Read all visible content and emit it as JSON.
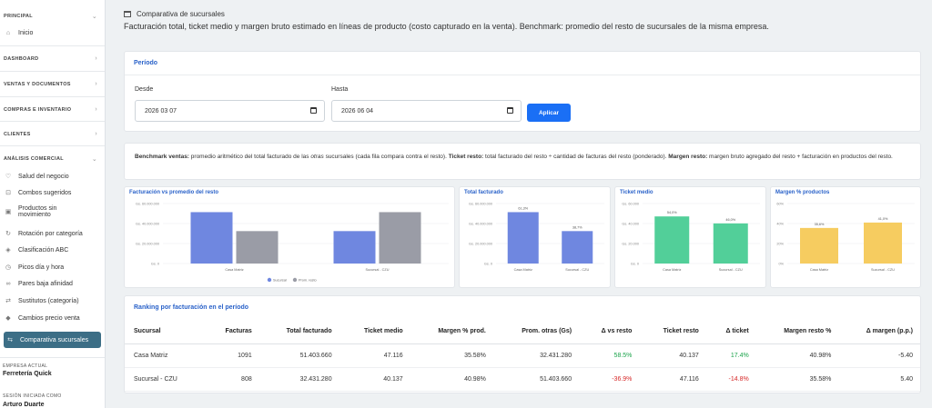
{
  "sidebar": {
    "principal": "PRINCIPAL",
    "inicio": "Inicio",
    "dashboard": "DASHBOARD",
    "ventas": "VENTAS Y DOCUMENTOS",
    "compras": "COMPRAS E INVENTARIO",
    "clientes": "CLIENTES",
    "analisis": "ANÁLISIS COMERCIAL",
    "items": [
      {
        "label": "Salud del negocio",
        "icon": "heart-pulse-icon",
        "glyph": "♡"
      },
      {
        "label": "Combos sugeridos",
        "icon": "basket-icon",
        "glyph": "⊡"
      },
      {
        "label": "Productos sin movimiento",
        "icon": "box-icon",
        "glyph": "▣"
      },
      {
        "label": "Rotación por categoría",
        "icon": "rotate-icon",
        "glyph": "↻"
      },
      {
        "label": "Clasificación ABC",
        "icon": "layers-icon",
        "glyph": "◈"
      },
      {
        "label": "Picos día y hora",
        "icon": "clock-icon",
        "glyph": "◷"
      },
      {
        "label": "Pares baja afinidad",
        "icon": "link-icon",
        "glyph": "∞"
      },
      {
        "label": "Sustitutos (categoría)",
        "icon": "shuffle-icon",
        "glyph": "⇄"
      },
      {
        "label": "Cambios precio venta",
        "icon": "tag-icon",
        "glyph": "◆"
      },
      {
        "label": "Comparativa sucursales",
        "icon": "compare-icon",
        "glyph": "⇆"
      }
    ],
    "empresa_label": "EMPRESA ACTUAL",
    "empresa": "Ferretería Quick",
    "sesion_label": "SESIÓN INICIADA COMO",
    "usuario": "Arturo Duarte"
  },
  "header": {
    "title": "Comparativa de sucursales",
    "desc": "Facturación total, ticket medio y margen bruto estimado en líneas de producto (costo capturado en la venta). Benchmark: promedio del resto de sucursales de la misma empresa."
  },
  "periodo": {
    "title": "Período",
    "desde_label": "Desde",
    "desde": "2026 03 07",
    "hasta_label": "Hasta",
    "hasta": "2026 06 04",
    "apply": "Aplicar"
  },
  "bench": {
    "b1": "Benchmark ventas:",
    "t1": " promedio aritmético del total facturado de las ",
    "t1i": "otras",
    "t1b": " sucursales (cada fila compara contra el resto). ",
    "b2": "Ticket resto:",
    "t2": " total facturado del resto ÷ cantidad de facturas del resto (ponderado). ",
    "b3": "Margen resto:",
    "t3": " margen bruto agregado del resto + facturación en productos del resto."
  },
  "colors": {
    "sucursal": "#6f87e0",
    "resto": "#9a9ca6",
    "total": "#6f87e0",
    "ticket": "#52cf99",
    "margen": "#f6cc60"
  },
  "chart_data": [
    {
      "type": "bar",
      "title": "Facturación vs promedio del resto",
      "categories": [
        "Casa Matriz",
        "Sucursal - CZU"
      ],
      "series": [
        {
          "name": "Sucursal",
          "values": [
            51403660,
            32431280
          ]
        },
        {
          "name": "Prom. resto",
          "values": [
            32431280,
            51403660
          ]
        }
      ],
      "ylim": [
        0,
        60000000
      ],
      "yticks": [
        "Gs. 0",
        "Gs. 20.000.000",
        "Gs. 40.000.000",
        "Gs. 60.000.000"
      ],
      "legend": "bottom"
    },
    {
      "type": "bar",
      "title": "Total facturado",
      "categories": [
        "Casa Matriz",
        "Sucursal - CZU"
      ],
      "values": [
        51403660,
        32431280
      ],
      "data_labels": [
        "61,3%",
        "38,7%"
      ],
      "ylim": [
        0,
        60000000
      ],
      "yticks": [
        "Gs. 0",
        "Gs. 20.000.000",
        "Gs. 40.000.000",
        "Gs. 60.000.000"
      ]
    },
    {
      "type": "bar",
      "title": "Ticket medio",
      "categories": [
        "Casa Matriz",
        "Sucursal - CZU"
      ],
      "values": [
        47116,
        40137
      ],
      "data_labels": [
        "54,0%",
        "46,0%"
      ],
      "ylim": [
        0,
        60000
      ],
      "yticks": [
        "Gs. 0",
        "Gs. 20.000",
        "Gs. 40.000",
        "Gs. 60.000"
      ]
    },
    {
      "type": "bar",
      "title": "Margen % productos",
      "categories": [
        "Casa Matriz",
        "Sucursal - CZU"
      ],
      "values": [
        35.58,
        40.98
      ],
      "data_labels": [
        "35,6%",
        "41,0%"
      ],
      "ylim": [
        0,
        60
      ],
      "yticks": [
        "0%",
        "20%",
        "40%",
        "60%"
      ]
    }
  ],
  "ranking": {
    "title": "Ranking por facturación en el período",
    "headers": [
      "Sucursal",
      "Facturas",
      "Total facturado",
      "Ticket medio",
      "Margen % prod.",
      "Prom. otras (Gs)",
      "Δ vs resto",
      "Ticket resto",
      "Δ ticket",
      "Margen resto %",
      "Δ margen (p.p.)"
    ],
    "rows": [
      [
        "Casa Matriz",
        "1091",
        "51.403.660",
        "47.116",
        "35.58%",
        "32.431.280",
        "58.5%",
        "40.137",
        "17.4%",
        "40.98%",
        "-5.40"
      ],
      [
        "Sucursal - CZU",
        "808",
        "32.431.280",
        "40.137",
        "40.98%",
        "51.403.660",
        "-36.9%",
        "47.116",
        "-14.8%",
        "35.58%",
        "5.40"
      ]
    ]
  }
}
